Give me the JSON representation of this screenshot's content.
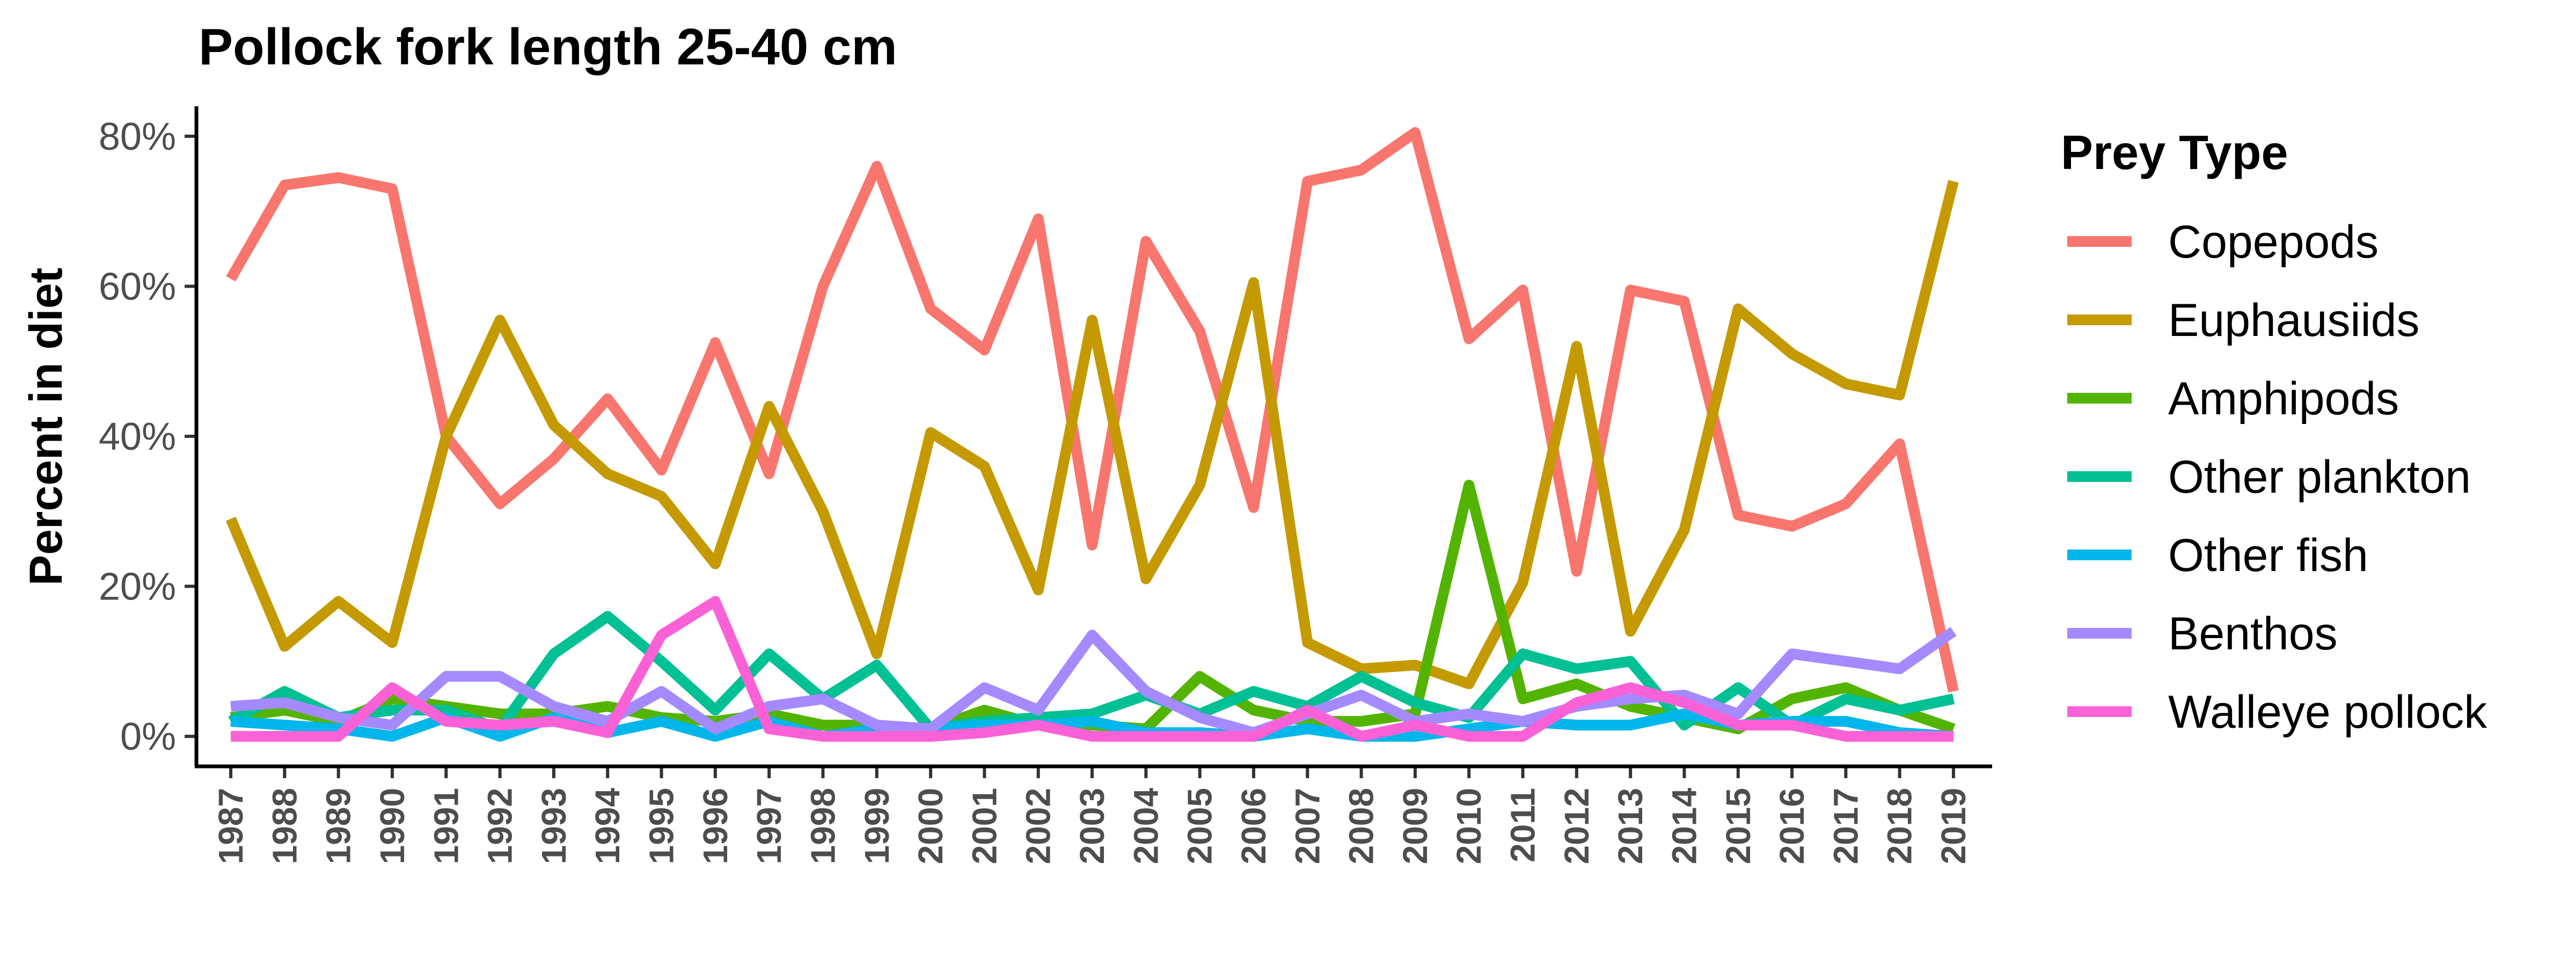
{
  "chart_data": {
    "type": "line",
    "title": "Pollock fork length 25-40 cm",
    "xlabel": "",
    "ylabel": "Percent in diet",
    "ylim": [
      -4,
      84
    ],
    "yticks": [
      0,
      20,
      40,
      60,
      80
    ],
    "ytick_labels": [
      "0%",
      "20%",
      "40%",
      "60%",
      "80%"
    ],
    "grid": false,
    "legend_title": "Prey Type",
    "legend_position": "right",
    "x": [
      1987,
      1988,
      1989,
      1990,
      1991,
      1992,
      1993,
      1994,
      1995,
      1996,
      1997,
      1998,
      1999,
      2000,
      2001,
      2002,
      2003,
      2004,
      2005,
      2006,
      2007,
      2008,
      2009,
      2010,
      2011,
      2012,
      2013,
      2014,
      2015,
      2016,
      2017,
      2018,
      2019
    ],
    "xtick_labels": [
      "1987",
      "1988",
      "1989",
      "1990",
      "1991",
      "1992",
      "1993",
      "1994",
      "1995",
      "1996",
      "1997",
      "1998",
      "1999",
      "2000",
      "2001",
      "2002",
      "2003",
      "2004",
      "2005",
      "2006",
      "2007",
      "2008",
      "2009",
      "2010",
      "2011",
      "2012",
      "2013",
      "2014",
      "2015",
      "2016",
      "2017",
      "2018",
      "2019"
    ],
    "series": [
      {
        "name": "Copepods",
        "color": "#F8766D",
        "values": [
          61,
          73.5,
          74.5,
          73,
          40,
          31,
          37,
          45,
          35.5,
          52.5,
          35,
          60,
          76,
          57,
          51.5,
          69,
          25.5,
          66,
          54,
          30.5,
          74,
          75.5,
          80.5,
          53,
          59.5,
          22,
          59.5,
          58,
          29.5,
          28,
          31,
          39,
          6
        ]
      },
      {
        "name": "Euphausiids",
        "color": "#C49A00",
        "values": [
          29,
          12,
          18,
          12.5,
          40,
          55.5,
          41.5,
          35,
          32,
          23,
          44,
          30,
          11,
          40.5,
          36,
          19.5,
          55.5,
          21,
          33.5,
          60.5,
          12.5,
          9,
          9.5,
          7,
          20.5,
          52,
          14,
          27.5,
          57,
          51,
          47,
          45.5,
          74
        ]
      },
      {
        "name": "Amphipods",
        "color": "#53B400",
        "values": [
          2.5,
          3.5,
          2,
          5,
          4,
          3,
          3,
          4,
          2.5,
          2,
          3,
          1.5,
          1.5,
          1,
          3.5,
          1.5,
          1.5,
          1,
          8,
          3.5,
          2,
          2,
          3,
          33.5,
          5,
          7,
          4,
          2.5,
          1,
          5,
          6.5,
          3.5,
          1
        ]
      },
      {
        "name": "Other plankton",
        "color": "#00C094",
        "values": [
          2,
          6,
          2.5,
          3.5,
          3.5,
          1,
          11,
          16,
          10,
          3.5,
          11,
          5,
          9.5,
          1,
          2,
          2.5,
          3,
          5.5,
          3,
          6,
          4,
          8,
          4.5,
          2.5,
          11,
          9,
          10,
          1.5,
          6.5,
          1.5,
          5,
          3.5,
          5
        ]
      },
      {
        "name": "Other fish",
        "color": "#00B6EB",
        "values": [
          2,
          1.5,
          1,
          0,
          2.5,
          0,
          2.5,
          0.5,
          2,
          0,
          2,
          0,
          1,
          1,
          1.5,
          1.5,
          2,
          0.5,
          0.5,
          0,
          1,
          0,
          0,
          1,
          2,
          1.5,
          1.5,
          3,
          1.5,
          2,
          2,
          0.5,
          0
        ]
      },
      {
        "name": "Benthos",
        "color": "#A58AFF",
        "values": [
          4,
          4.5,
          2.5,
          1.5,
          8,
          8,
          4,
          2,
          6,
          1,
          4,
          5,
          1.5,
          1,
          6.5,
          3.5,
          13.5,
          6,
          2.5,
          0.5,
          3,
          5.5,
          2,
          3,
          2,
          4,
          5,
          5.5,
          3,
          11,
          10,
          9,
          14
        ]
      },
      {
        "name": "Walleye pollock",
        "color": "#FB61D7",
        "values": [
          0,
          0,
          0,
          6.5,
          2,
          1.5,
          2,
          0.5,
          13.5,
          18,
          1,
          0,
          0,
          0,
          0.5,
          1.5,
          0,
          0,
          0,
          0,
          3.5,
          0,
          1.5,
          0,
          0,
          4.5,
          6.5,
          4.5,
          1.5,
          1.5,
          0,
          0,
          0
        ]
      }
    ]
  }
}
